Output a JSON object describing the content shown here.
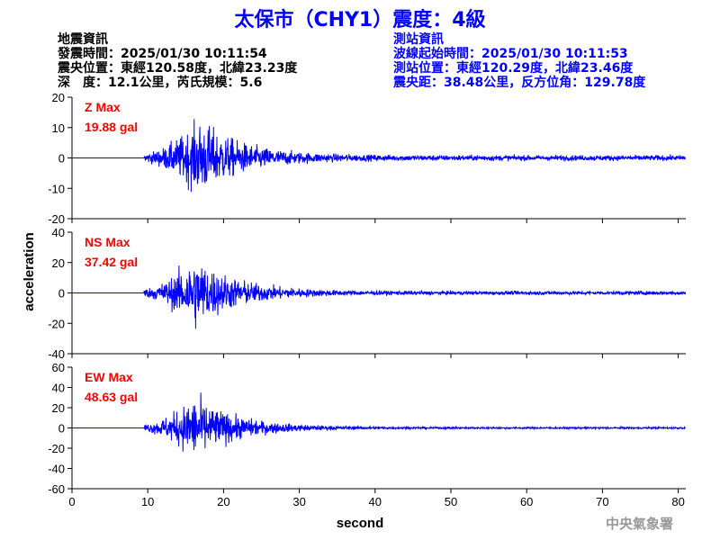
{
  "title": "太保市（CHY1）震度：4級",
  "quake_info": {
    "heading": "地震資訊",
    "origin_time": "發震時間：2025/01/30 10:11:54",
    "epicenter": "震央位置：東經120.58度，北緯23.23度",
    "depth_magnitude": "深　度：12.1公里，芮氏規模：5.6"
  },
  "station_info": {
    "heading": "測站資訊",
    "wave_start": "波線起始時間：2025/01/30 10:11:53",
    "location": "測站位置：東經120.29度，北緯23.46度",
    "distance_azimuth": "震央距：38.48公里，反方位角：129.78度"
  },
  "agency": "中央氣象署",
  "chart_data": {
    "type": "line",
    "xlabel": "second",
    "ylabel": "acceleration",
    "xlim": [
      0,
      81
    ],
    "xticks": [
      0,
      10,
      20,
      30,
      40,
      50,
      60,
      70,
      80
    ],
    "line_color": "#0000ff",
    "label_color": "#ff0000",
    "grid": false,
    "panels": [
      {
        "component": "Z",
        "max_label": "Z Max",
        "max_value": "19.88 gal",
        "peak": 19.88,
        "ylim": [
          -20,
          20
        ],
        "yticks": [
          -20,
          -10,
          0,
          10,
          20
        ],
        "onset": 9.5,
        "peak_time": 17,
        "tail": 0.07
      },
      {
        "component": "NS",
        "max_label": "NS Max",
        "max_value": "37.42 gal",
        "peak": 37.42,
        "ylim": [
          -40,
          40
        ],
        "yticks": [
          -40,
          -20,
          0,
          20,
          40
        ],
        "onset": 9.5,
        "peak_time": 16.3,
        "tail": 0.05
      },
      {
        "component": "EW",
        "max_label": "EW Max",
        "max_value": "48.63 gal",
        "peak": 48.63,
        "ylim": [
          -60,
          60
        ],
        "yticks": [
          -60,
          -40,
          -20,
          0,
          20,
          40,
          60
        ],
        "onset": 9.5,
        "peak_time": 16.3,
        "tail": 0.03
      }
    ]
  }
}
